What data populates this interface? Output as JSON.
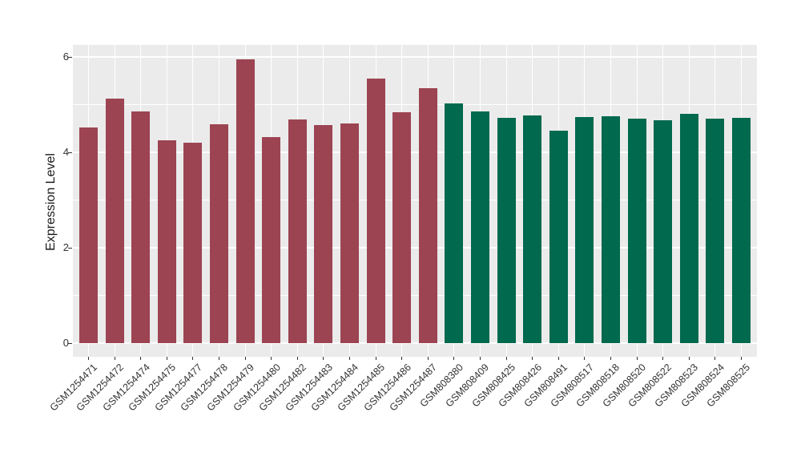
{
  "figure": {
    "background": "#ffffff",
    "panel_background": "#ebebeb",
    "grid_color": "#ffffff",
    "axis_text_color": "#333333",
    "tick_mark_color": "#333333"
  },
  "chart_data": {
    "type": "bar",
    "title": "",
    "xlabel": "",
    "ylabel": "Expression Level",
    "ylim": [
      0,
      6.25
    ],
    "yticks": [
      0,
      2,
      4,
      6
    ],
    "minor_gridlines": [
      1,
      3,
      5
    ],
    "grid": true,
    "legend_position": "none",
    "categories": [
      "GSM1254471",
      "GSM1254472",
      "GSM1254474",
      "GSM1254475",
      "GSM1254477",
      "GSM1254478",
      "GSM1254479",
      "GSM1254480",
      "GSM1254482",
      "GSM1254483",
      "GSM1254484",
      "GSM1254485",
      "GSM1254486",
      "GSM1254487",
      "GSM808380",
      "GSM808409",
      "GSM808425",
      "GSM808426",
      "GSM808491",
      "GSM808517",
      "GSM808518",
      "GSM808520",
      "GSM808522",
      "GSM808523",
      "GSM808524",
      "GSM808525"
    ],
    "values": [
      4.52,
      5.13,
      4.86,
      4.26,
      4.2,
      4.58,
      5.95,
      4.32,
      4.69,
      4.57,
      4.6,
      5.54,
      4.84,
      5.34,
      5.03,
      4.86,
      4.72,
      4.77,
      4.46,
      4.74,
      4.76,
      4.7,
      4.68,
      4.8,
      4.71,
      4.73
    ],
    "bar_colors": [
      "#9C4452",
      "#9C4452",
      "#9C4452",
      "#9C4452",
      "#9C4452",
      "#9C4452",
      "#9C4452",
      "#9C4452",
      "#9C4452",
      "#9C4452",
      "#9C4452",
      "#9C4452",
      "#9C4452",
      "#9C4452",
      "#01694E",
      "#01694E",
      "#01694E",
      "#01694E",
      "#01694E",
      "#01694E",
      "#01694E",
      "#01694E",
      "#01694E",
      "#01694E",
      "#01694E",
      "#01694E"
    ],
    "palette": {
      "maroon": "#9C4452",
      "green": "#01694E"
    }
  }
}
